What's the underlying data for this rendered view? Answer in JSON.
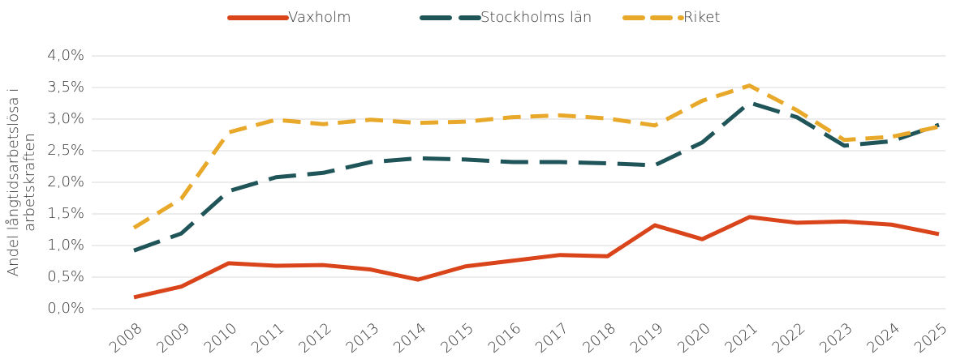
{
  "chart_data": {
    "type": "line",
    "ylabel": [
      "Andel långtidsarbetslösa i",
      "arbetskraften"
    ],
    "categories": [
      "2008",
      "2009",
      "2010",
      "2011",
      "2012",
      "2013",
      "2014",
      "2015",
      "2016",
      "2017",
      "2018",
      "2019",
      "2020",
      "2021",
      "2022",
      "2023",
      "2024",
      "2025"
    ],
    "series": [
      {
        "name": "Vaxholm",
        "color": "#d9441a",
        "style": "solid",
        "values": [
          0.18,
          0.35,
          0.72,
          0.68,
          0.69,
          0.62,
          0.46,
          0.67,
          0.76,
          0.85,
          0.83,
          1.32,
          1.1,
          1.45,
          1.36,
          1.38,
          1.33,
          1.18
        ]
      },
      {
        "name": "Stockholms län",
        "color": "#1f5459",
        "style": "long-dash",
        "values": [
          0.92,
          1.19,
          1.86,
          2.08,
          2.15,
          2.32,
          2.38,
          2.36,
          2.32,
          2.32,
          2.3,
          2.27,
          2.63,
          3.26,
          3.03,
          2.58,
          2.65,
          2.91
        ]
      },
      {
        "name": "Riket",
        "color": "#e8a92a",
        "style": "dash",
        "values": [
          1.28,
          1.74,
          2.79,
          2.99,
          2.92,
          2.99,
          2.94,
          2.96,
          3.03,
          3.06,
          3.01,
          2.9,
          3.29,
          3.53,
          3.14,
          2.67,
          2.72,
          2.88
        ]
      }
    ],
    "ylim": [
      0,
      4
    ],
    "yticks": [
      {
        "value": 0,
        "label": "0,0%"
      },
      {
        "value": 0.5,
        "label": "0,5%"
      },
      {
        "value": 1,
        "label": "1,0%"
      },
      {
        "value": 1.5,
        "label": "1,5%"
      },
      {
        "value": 2,
        "label": "2,0%"
      },
      {
        "value": 2.5,
        "label": "2,5%"
      },
      {
        "value": 3,
        "label": "3,0%"
      },
      {
        "value": 3.5,
        "label": "3,5%"
      },
      {
        "value": 4,
        "label": "4,0%"
      }
    ],
    "grid": true,
    "legend": "top"
  }
}
